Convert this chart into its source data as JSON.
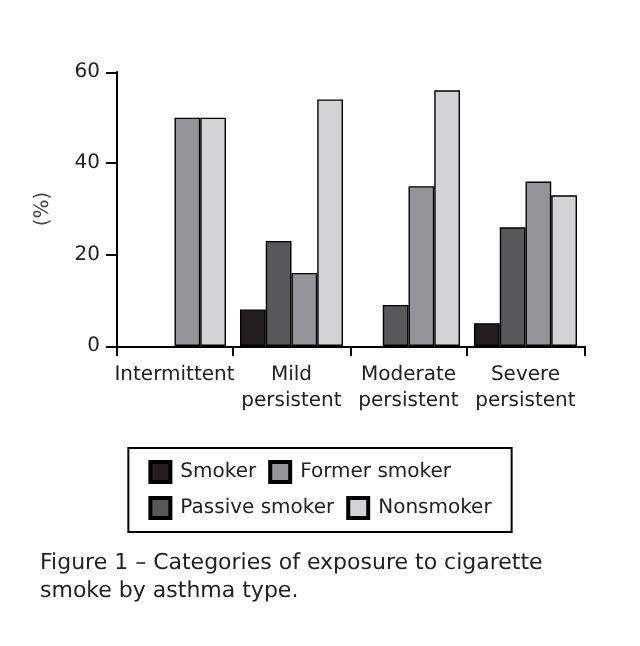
{
  "chart_data": {
    "type": "bar",
    "ylabel": "(%)",
    "categories": [
      "Intermittent",
      "Mild\npersistent",
      "Moderate\npersistent",
      "Severe\npersistent"
    ],
    "series": [
      {
        "name": "Smoker",
        "color": "#231f20",
        "values": [
          0,
          8,
          0,
          5
        ]
      },
      {
        "name": "Passive smoker",
        "color": "#58585a",
        "values": [
          0,
          23,
          9,
          26
        ]
      },
      {
        "name": "Former smoker",
        "color": "#939598",
        "values": [
          50,
          16,
          35,
          36
        ]
      },
      {
        "name": "Nonsmoker",
        "color": "#d1d3d4",
        "values": [
          50,
          54,
          56,
          33
        ]
      }
    ],
    "ylim": [
      0,
      60
    ],
    "yticks": [
      0,
      20,
      40,
      60
    ],
    "grid": false,
    "legend": "bottom",
    "annotations": [
      "Figure 1 – Categories of exposure to cigarette smoke by asthma type."
    ]
  }
}
